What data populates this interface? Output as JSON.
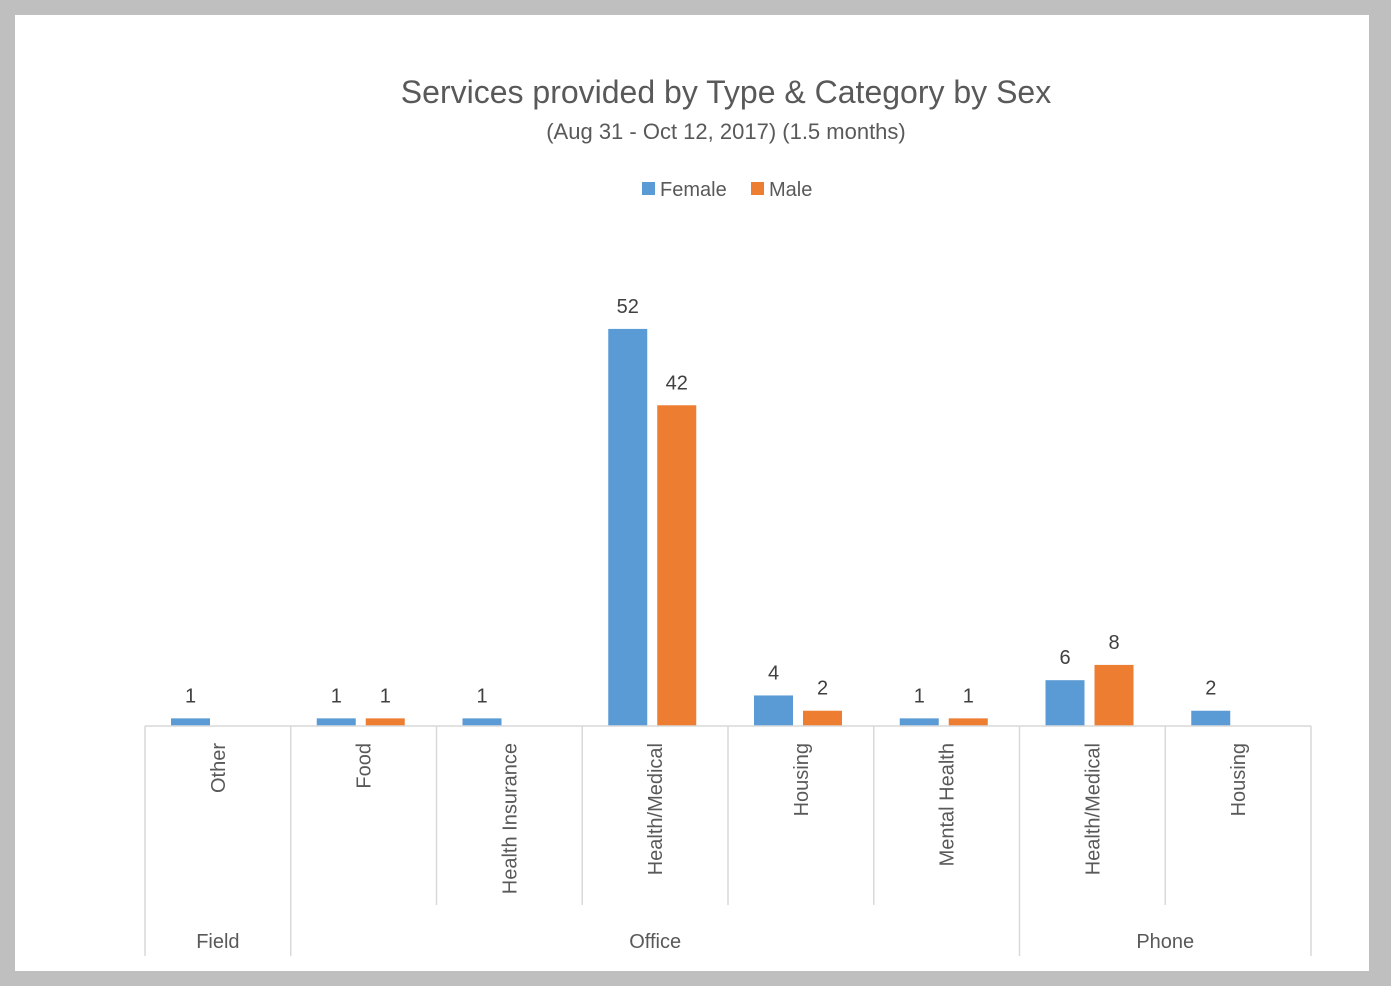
{
  "chart_data": {
    "type": "bar",
    "title": "Services provided by Type & Category by Sex",
    "subtitle": "(Aug 31 - Oct 12, 2017) (1.5 months)",
    "legend_position": "top-center",
    "grid": false,
    "ylim": [
      0,
      55
    ],
    "groups": [
      {
        "label": "Field",
        "categories": [
          "Other"
        ]
      },
      {
        "label": "Office",
        "categories": [
          "Food",
          "Health Insurance",
          "Health/Medical",
          "Housing",
          "Mental Health"
        ]
      },
      {
        "label": "Phone",
        "categories": [
          "Health/Medical",
          "Housing"
        ]
      }
    ],
    "categories": [
      "Other",
      "Food",
      "Health Insurance",
      "Health/Medical",
      "Housing",
      "Mental Health",
      "Health/Medical",
      "Housing"
    ],
    "series": [
      {
        "name": "Female",
        "color": "#5b9bd5",
        "values": [
          1,
          1,
          1,
          52,
          4,
          1,
          6,
          2
        ]
      },
      {
        "name": "Male",
        "color": "#ed7d31",
        "values": [
          null,
          1,
          null,
          42,
          2,
          1,
          8,
          null
        ]
      }
    ]
  }
}
